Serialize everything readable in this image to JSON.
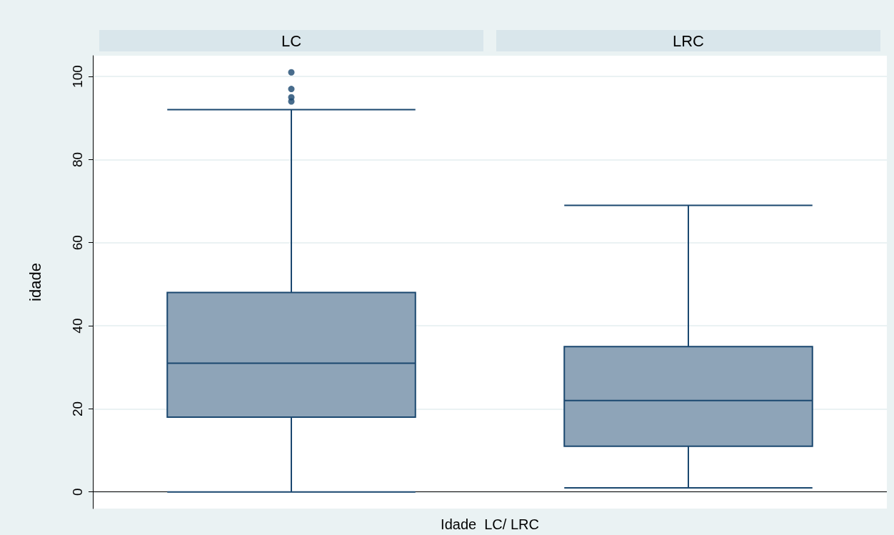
{
  "chart_data": {
    "type": "box",
    "ylabel": "idade",
    "xlabel": "Idade  LC/ LRC",
    "categories": [
      "LC",
      "LRC"
    ],
    "color": "#8ea4b8",
    "boxes": [
      {
        "low": 0,
        "q1": 18,
        "median": 31,
        "q3": 48,
        "high": 92,
        "outliers": [
          94,
          95,
          97,
          101
        ]
      },
      {
        "low": 1,
        "q1": 11,
        "median": 22,
        "q3": 35,
        "high": 69
      }
    ],
    "ylim": [
      -4,
      105
    ],
    "yticks": [
      0,
      20,
      40,
      60,
      80,
      100
    ],
    "grid": "y"
  }
}
